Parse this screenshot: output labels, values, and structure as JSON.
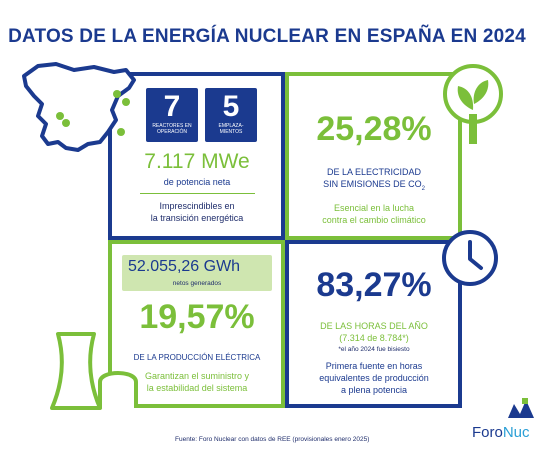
{
  "title": "DATOS DE LA ENERGÍA NUCLEAR EN ESPAÑA EN 2024",
  "panel_tl": {
    "reactors_value": "7",
    "reactors_label": "REACTORES EN OPERACIÓN",
    "sites_value": "5",
    "sites_label": "EMPLAZA-MIENTOS",
    "power_value": "7.117 MWe",
    "power_label": "de potencia neta",
    "note_line1": "Imprescindibles en",
    "note_line2": "la transición energética"
  },
  "panel_tr": {
    "value": "25,28%",
    "line1": "DE LA ELECTRICIDAD",
    "line2": "SIN EMISIONES DE CO",
    "line2_sub": "2",
    "note_line1": "Esencial en la lucha",
    "note_line2": "contra el cambio climático"
  },
  "panel_bl": {
    "energy_value": "52.055,26 GWh",
    "energy_label": "netos generados",
    "value": "19,57%",
    "label": "DE LA PRODUCCIÓN ELÉCTRICA",
    "note_line1": "Garantizan el suministro y",
    "note_line2": "la estabilidad del sistema"
  },
  "panel_br": {
    "value": "83,27%",
    "line1": "DE LAS HORAS DEL AÑO",
    "line2": "(7.314 de 8.784*)",
    "footnote": "*el año 2024 fue bisiesto",
    "note_line1": "Primera fuente en horas",
    "note_line2": "equivalentes de producción",
    "note_line3": "a plena potencia"
  },
  "source": "Fuente: Foro Nuclear con datos de REE (provisionales enero 2025)",
  "logo_text_1": "Foro",
  "logo_text_2": "Nuc",
  "colors": {
    "blue": "#1b3a8f",
    "green": "#7bbf3a",
    "light_green_box": "#cfe6b0"
  }
}
